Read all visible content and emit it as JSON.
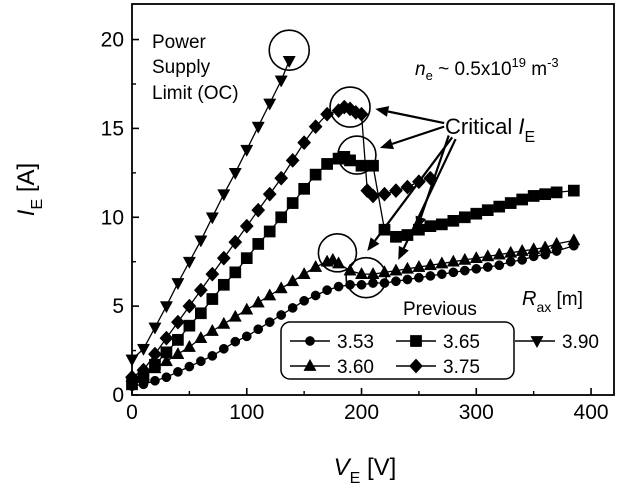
{
  "chart_data": {
    "type": "line",
    "xlabel": {
      "main": "V",
      "sub": "E",
      "unit": " [V]"
    },
    "ylabel": {
      "main": "I",
      "sub": "E",
      "unit": " [A]"
    },
    "xlim": [
      0,
      420
    ],
    "ylim": [
      0,
      22
    ],
    "xticks": [
      0,
      100,
      200,
      300,
      400
    ],
    "yticks": [
      0,
      5,
      10,
      15,
      20
    ],
    "xtick_labels": [
      "0",
      "100",
      "200",
      "300",
      "400"
    ],
    "ytick_labels": [
      "0",
      "5",
      "10",
      "15",
      "20"
    ],
    "grid": false,
    "legend": {
      "placement": "bottom-right",
      "title": "Previous",
      "rax_label": {
        "main": "R",
        "sub": "ax",
        "unit": " [m]"
      }
    },
    "annotations": {
      "power_supply_lines": [
        "Power",
        "Supply",
        "Limit (OC)"
      ],
      "density": {
        "prefix": "n",
        "sub": "e",
        "mid": " ~ 0.5x10",
        "sup": "19",
        "unit": " m",
        "unit_sup": "-3"
      },
      "critical": {
        "text": "Critical ",
        "italic": "I",
        "sub": "E"
      }
    },
    "circles": [
      {
        "x": 137,
        "y": 19.4,
        "r": 20
      },
      {
        "x": 190,
        "y": 16.2,
        "r": 20
      },
      {
        "x": 196,
        "y": 13.5,
        "r": 19
      },
      {
        "x": 179,
        "y": 8.0,
        "r": 19
      },
      {
        "x": 204,
        "y": 6.6,
        "r": 20
      }
    ],
    "arrows": [
      {
        "from": [
          272,
          15.3
        ],
        "to": [
          212,
          16.1
        ]
      },
      {
        "from": [
          272,
          15.1
        ],
        "to": [
          216,
          13.9
        ]
      },
      {
        "from": [
          276,
          14.6
        ],
        "to": [
          248,
          9.3
        ]
      },
      {
        "from": [
          282,
          14.4
        ],
        "to": [
          232,
          7.6
        ]
      },
      {
        "from": [
          279,
          14.5
        ],
        "to": [
          205,
          8.1
        ]
      }
    ],
    "series": [
      {
        "name": "3.53",
        "marker": "circle",
        "in_legend_box": true,
        "x": [
          0,
          10,
          20,
          30,
          40,
          50,
          60,
          70,
          80,
          90,
          100,
          110,
          120,
          130,
          140,
          150,
          160,
          170,
          180,
          190,
          200,
          210,
          220,
          230,
          240,
          250,
          260,
          270,
          280,
          290,
          300,
          310,
          320,
          330,
          340,
          350,
          360,
          370,
          385
        ],
        "y": [
          0.5,
          0.6,
          0.8,
          1.0,
          1.3,
          1.6,
          1.9,
          2.2,
          2.6,
          3.0,
          3.3,
          3.7,
          4.1,
          4.5,
          4.9,
          5.3,
          5.6,
          5.9,
          6.1,
          6.2,
          6.2,
          6.3,
          6.3,
          6.4,
          6.5,
          6.6,
          6.7,
          6.8,
          6.9,
          7.0,
          7.1,
          7.2,
          7.3,
          7.5,
          7.6,
          7.8,
          7.9,
          8.1,
          8.4
        ]
      },
      {
        "name": "3.60",
        "marker": "triangle-up",
        "in_legend_box": true,
        "x": [
          0,
          10,
          20,
          30,
          40,
          50,
          60,
          70,
          80,
          90,
          100,
          110,
          120,
          130,
          140,
          150,
          160,
          170,
          175,
          180,
          190,
          200,
          210,
          220,
          230,
          240,
          250,
          260,
          270,
          280,
          290,
          300,
          310,
          320,
          330,
          340,
          350,
          360,
          370,
          385
        ],
        "y": [
          1.0,
          1.1,
          1.5,
          1.9,
          2.3,
          2.7,
          3.2,
          3.6,
          4.0,
          4.4,
          4.8,
          5.2,
          5.6,
          6.0,
          6.4,
          6.8,
          7.2,
          7.5,
          7.6,
          7.4,
          7.0,
          6.8,
          6.8,
          6.9,
          7.0,
          7.1,
          7.2,
          7.3,
          7.4,
          7.5,
          7.6,
          7.7,
          7.8,
          7.9,
          8.0,
          8.1,
          8.2,
          8.3,
          8.5,
          8.7
        ]
      },
      {
        "name": "3.65",
        "marker": "square",
        "in_legend_box": true,
        "x": [
          0,
          10,
          20,
          30,
          40,
          50,
          60,
          70,
          80,
          90,
          100,
          110,
          120,
          130,
          140,
          150,
          160,
          170,
          180,
          185,
          190,
          200,
          210,
          220,
          230,
          240,
          250,
          260,
          270,
          280,
          290,
          300,
          310,
          320,
          330,
          340,
          350,
          360,
          370,
          385
        ],
        "y": [
          0.6,
          1.0,
          1.7,
          2.4,
          3.1,
          3.9,
          4.6,
          5.4,
          6.2,
          6.9,
          7.7,
          8.5,
          9.2,
          10.0,
          10.8,
          11.6,
          12.4,
          13.0,
          13.3,
          13.4,
          13.2,
          12.9,
          12.9,
          9.3,
          8.9,
          9.0,
          9.3,
          9.5,
          9.6,
          9.8,
          10.0,
          10.2,
          10.4,
          10.6,
          10.8,
          11.0,
          11.2,
          11.3,
          11.4,
          11.5
        ]
      },
      {
        "name": "3.75",
        "marker": "diamond",
        "in_legend_box": true,
        "x": [
          0,
          10,
          20,
          30,
          40,
          50,
          60,
          70,
          80,
          90,
          100,
          110,
          120,
          130,
          140,
          150,
          160,
          170,
          180,
          185,
          190,
          195,
          200,
          205,
          210,
          220,
          230,
          240,
          250,
          260
        ],
        "y": [
          1.0,
          1.4,
          2.3,
          3.2,
          4.1,
          5.0,
          5.9,
          6.8,
          7.7,
          8.6,
          9.5,
          10.4,
          11.3,
          12.2,
          13.2,
          14.2,
          15.1,
          15.8,
          16.0,
          16.2,
          16.1,
          15.9,
          15.8,
          11.5,
          11.2,
          11.3,
          11.5,
          11.7,
          12.0,
          12.2
        ]
      },
      {
        "name": "3.90",
        "marker": "triangle-down",
        "in_legend_box": false,
        "x": [
          0,
          10,
          20,
          30,
          40,
          50,
          60,
          70,
          80,
          90,
          100,
          110,
          120,
          130,
          137
        ],
        "y": [
          2.0,
          2.6,
          3.8,
          5.0,
          6.3,
          7.5,
          8.7,
          10.0,
          11.3,
          12.5,
          13.8,
          15.1,
          16.4,
          17.7,
          18.8
        ]
      }
    ]
  }
}
